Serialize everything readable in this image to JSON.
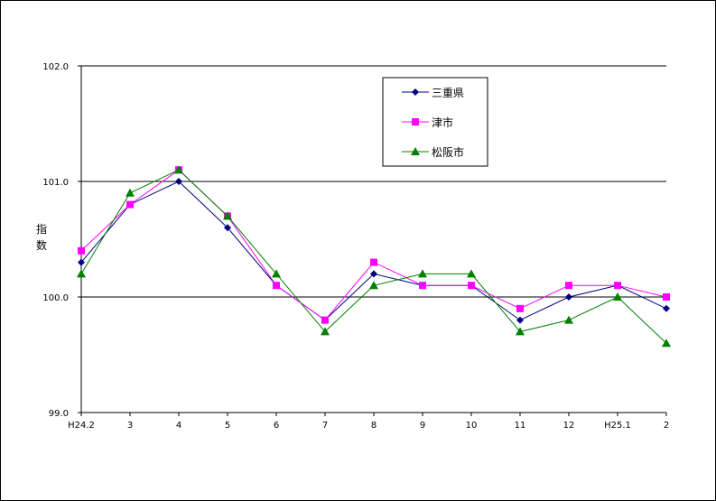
{
  "chart_data": {
    "type": "line",
    "title": "",
    "xlabel": "",
    "ylabel": "指数",
    "categories": [
      "H24.2",
      "3",
      "4",
      "5",
      "6",
      "7",
      "8",
      "9",
      "10",
      "11",
      "12",
      "H25.1",
      "2"
    ],
    "ylim": [
      99.0,
      102.0
    ],
    "yticks": [
      "99.0",
      "100.0",
      "101.0",
      "102.0"
    ],
    "grid": "horizontal major lines",
    "legend_position": "top-center",
    "series": [
      {
        "name": "三重県",
        "color": "#000080",
        "marker": "diamond",
        "values": [
          100.3,
          100.8,
          101.0,
          100.6,
          100.1,
          99.8,
          100.2,
          100.1,
          100.1,
          99.8,
          100.0,
          100.1,
          99.9
        ]
      },
      {
        "name": "津市",
        "color": "#ff00ff",
        "marker": "square",
        "values": [
          100.4,
          100.8,
          101.1,
          100.7,
          100.1,
          99.8,
          100.3,
          100.1,
          100.1,
          99.9,
          100.1,
          100.1,
          100.0
        ]
      },
      {
        "name": "松阪市",
        "color": "#008000",
        "marker": "triangle",
        "values": [
          100.2,
          100.9,
          101.1,
          100.7,
          100.2,
          99.7,
          100.1,
          100.2,
          100.2,
          99.7,
          99.8,
          100.0,
          99.6
        ]
      }
    ]
  }
}
